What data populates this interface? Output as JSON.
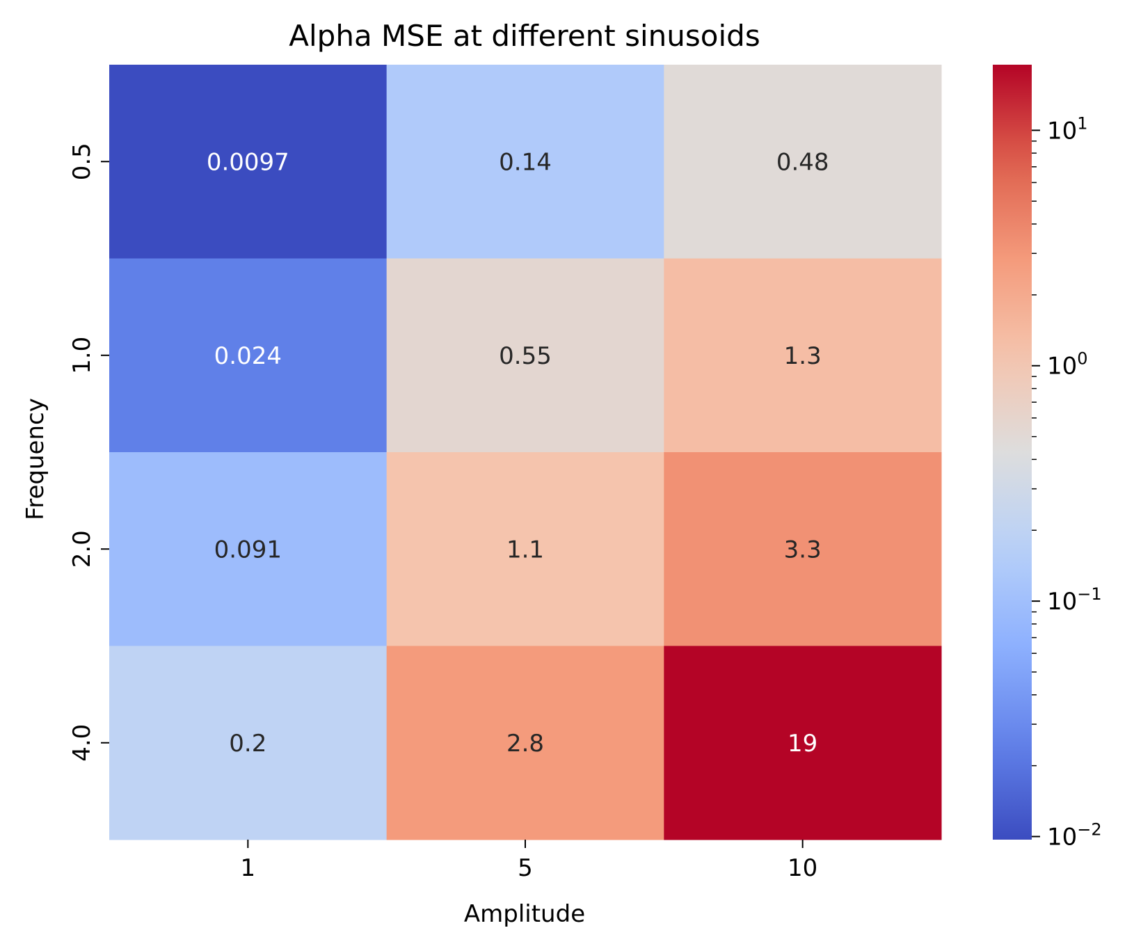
{
  "chart_data": {
    "type": "heatmap",
    "title": "Alpha MSE at different sinusoids",
    "xlabel": "Amplitude",
    "ylabel": "Frequency",
    "x_categories": [
      "1",
      "5",
      "10"
    ],
    "y_categories": [
      "0.5",
      "1.0",
      "2.0",
      "4.0"
    ],
    "values": [
      [
        0.0097,
        0.14,
        0.48
      ],
      [
        0.024,
        0.55,
        1.3
      ],
      [
        0.091,
        1.1,
        3.3
      ],
      [
        0.2,
        2.8,
        19
      ]
    ],
    "cell_labels": [
      [
        "0.0097",
        "0.14",
        "0.48"
      ],
      [
        "0.024",
        "0.55",
        "1.3"
      ],
      [
        "0.091",
        "1.1",
        "3.3"
      ],
      [
        "0.2",
        "2.8",
        "19"
      ]
    ],
    "colormap": "coolwarm",
    "color_scale": "log",
    "color_range": [
      0.0097,
      19
    ],
    "colorbar": {
      "ticks": [
        {
          "value": 0.01,
          "base": "10",
          "exp": "−2"
        },
        {
          "value": 0.1,
          "base": "10",
          "exp": "−1"
        },
        {
          "value": 1,
          "base": "10",
          "exp": "0"
        },
        {
          "value": 10,
          "base": "10",
          "exp": "1"
        }
      ],
      "position": "right"
    },
    "grid": false
  }
}
